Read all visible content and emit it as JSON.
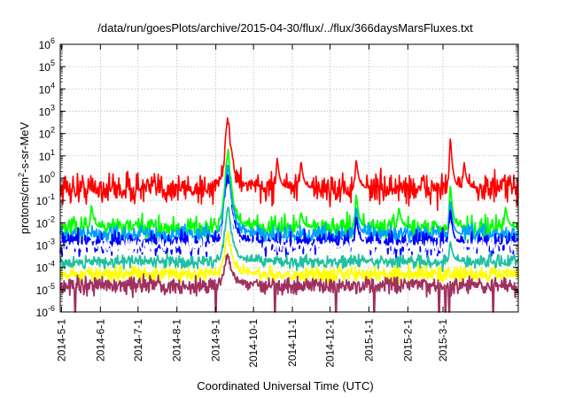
{
  "chart_data": {
    "type": "line",
    "title": "/data/run/goesPlots/archive/2015-04-30/flux/../flux/366daysMarsFluxes.txt",
    "xlabel": "Coordinated Universal Time (UTC)",
    "ylabel": {
      "pre": "protons/cm",
      "sup": "2",
      "post": "-s-sr-MeV"
    },
    "yscale": "log",
    "ylim_exp": [
      -6,
      6
    ],
    "y_ticks": [
      {
        "base": "10",
        "exp": "-6"
      },
      {
        "base": "10",
        "exp": "-5"
      },
      {
        "base": "10",
        "exp": "-4"
      },
      {
        "base": "10",
        "exp": "-3"
      },
      {
        "base": "10",
        "exp": "-2"
      },
      {
        "base": "10",
        "exp": "-1"
      },
      {
        "base": "10",
        "exp": "0"
      },
      {
        "base": "10",
        "exp": "1"
      },
      {
        "base": "10",
        "exp": "2"
      },
      {
        "base": "10",
        "exp": "3"
      },
      {
        "base": "10",
        "exp": "4"
      },
      {
        "base": "10",
        "exp": "5"
      },
      {
        "base": "10",
        "exp": "6"
      }
    ],
    "xlim": [
      "2014-04-30",
      "2015-04-30"
    ],
    "x_ticks": [
      "2014-5-1",
      "2014-6-1",
      "2014-7-1",
      "2014-8-1",
      "2014-9-1",
      "2014-10-1",
      "2014-11-1",
      "2014-12-1",
      "2015-1-1",
      "2015-2-1",
      "2015-3-1"
    ],
    "grid": true,
    "series": [
      {
        "color": "#ff0000",
        "base": 0.35,
        "noise": 0.35,
        "peak": 300,
        "minor_events": [
          [
            "2014-10-20",
            8
          ],
          [
            "2014-11-8",
            6
          ],
          [
            "2014-12-22",
            7
          ],
          [
            "2015-3-7",
            70
          ],
          [
            "2015-3-18",
            5
          ]
        ]
      },
      {
        "color": "#00ff00",
        "base": 0.006,
        "noise": 0.25,
        "peak": 15,
        "minor_events": [
          [
            "2014-5-25",
            0.06
          ],
          [
            "2014-11-8",
            0.03
          ],
          [
            "2014-12-22",
            0.2
          ],
          [
            "2015-1-25",
            0.05
          ],
          [
            "2015-3-7",
            0.5
          ],
          [
            "2015-4-20",
            0.05
          ]
        ]
      },
      {
        "color": "#00a0ff",
        "base": 0.003,
        "noise": 0.2,
        "peak": 3,
        "minor_events": [
          [
            "2014-12-22",
            0.05
          ],
          [
            "2015-3-7",
            0.1
          ]
        ]
      },
      {
        "color": "#0000ff",
        "base": 0.0012,
        "noise": 0.25,
        "peak": 1,
        "minor_events": [
          [
            "2014-12-22",
            0.02
          ],
          [
            "2015-3-7",
            0.04
          ]
        ]
      },
      {
        "color": "#ffffff",
        "base": 0.0009,
        "noise": 0.15,
        "peak": 0.5,
        "minor_events": [
          [
            "2015-3-7",
            0.01
          ]
        ]
      },
      {
        "color": "#20c0a0",
        "base": 0.00018,
        "noise": 0.15,
        "peak": 0.05,
        "minor_events": [
          [
            "2015-3-7",
            0.0015
          ]
        ]
      },
      {
        "color": "#ffff00",
        "base": 5e-05,
        "noise": 0.18,
        "peak": 0.003,
        "minor_events": []
      },
      {
        "color": "#a03060",
        "base": 1.5e-05,
        "noise": 0.2,
        "peak": 0.0004,
        "minor_events": [],
        "dropouts": [
          "2014-5-12",
          "2014-9-1",
          "2014-10-18",
          "2014-12-6",
          "2015-1-5",
          "2015-2-26",
          "2015-3-3",
          "2015-3-6",
          "2015-4-10"
        ]
      }
    ],
    "peak_date": "2014-9-11"
  }
}
